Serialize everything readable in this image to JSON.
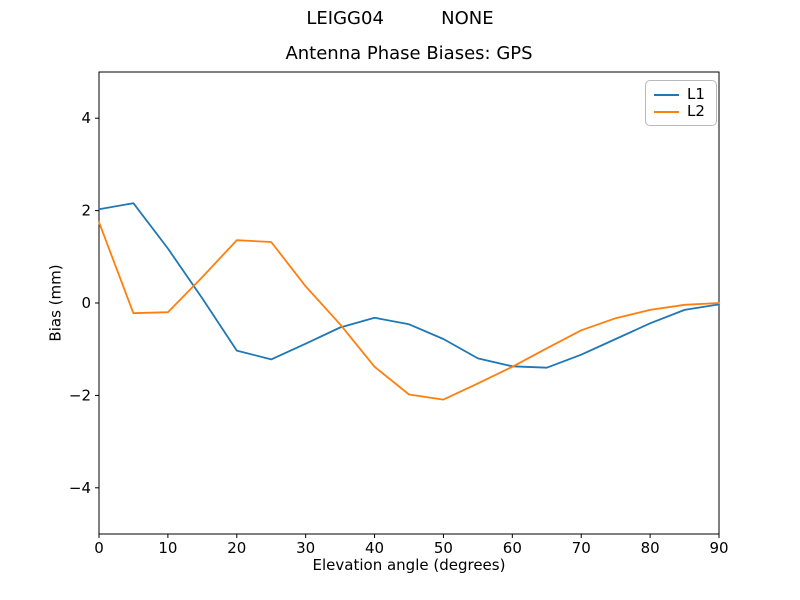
{
  "figure": {
    "background": "#ffffff"
  },
  "chart_data": {
    "type": "line",
    "suptitle": "LEIGG04          NONE",
    "title": "Antenna Phase Biases: GPS",
    "xlabel": "Elevation angle (degrees)",
    "ylabel": "Bias (mm)",
    "xlim": [
      0,
      90
    ],
    "ylim": [
      -5,
      5
    ],
    "xticks": [
      0,
      10,
      20,
      30,
      40,
      50,
      60,
      70,
      80,
      90
    ],
    "yticks": [
      -4,
      -2,
      0,
      2,
      4
    ],
    "grid": false,
    "legend_position": "upper right",
    "x": [
      0,
      5,
      10,
      15,
      20,
      25,
      30,
      35,
      40,
      45,
      50,
      55,
      60,
      65,
      70,
      75,
      80,
      85,
      90
    ],
    "series": [
      {
        "name": "L1",
        "color": "#1f77b4",
        "values": [
          2.03,
          2.16,
          1.18,
          0.1,
          -1.03,
          -1.22,
          -0.88,
          -0.53,
          -0.32,
          -0.46,
          -0.78,
          -1.2,
          -1.37,
          -1.4,
          -1.12,
          -0.78,
          -0.44,
          -0.15,
          -0.03
        ]
      },
      {
        "name": "L2",
        "color": "#ff7f0e",
        "values": [
          1.75,
          -0.22,
          -0.2,
          0.56,
          1.36,
          1.32,
          0.36,
          -0.46,
          -1.38,
          -1.98,
          -2.09,
          -1.74,
          -1.38,
          -0.98,
          -0.59,
          -0.33,
          -0.15,
          -0.04,
          0.0
        ]
      }
    ],
    "axis_color": "#000000",
    "legend_border_color": "#b9b9b9"
  }
}
